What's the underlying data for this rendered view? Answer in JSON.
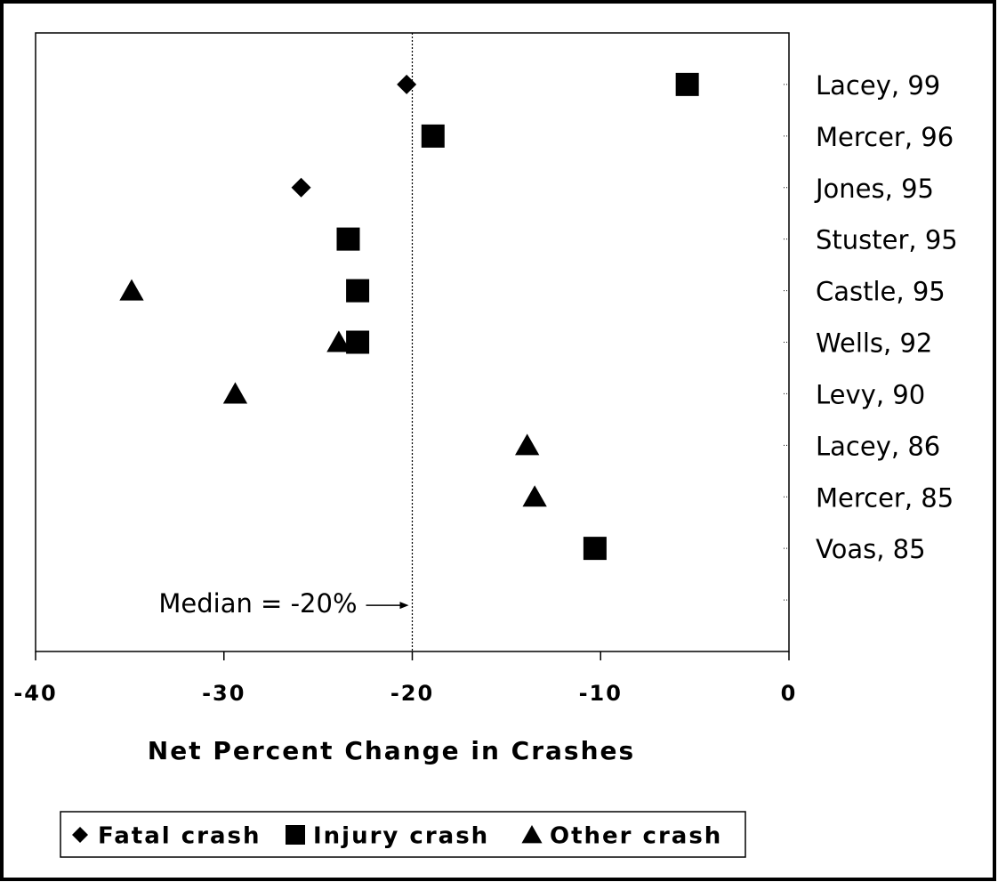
{
  "chart_data": {
    "type": "dot",
    "xlabel": "Net Percent Change in Crashes",
    "xlim": [
      -40,
      0
    ],
    "xticks": [
      -40,
      -30,
      -20,
      -10,
      0
    ],
    "categories": [
      "Lacey, 99",
      "Mercer, 96",
      "Jones, 95",
      "Stuster, 95",
      "Castle, 95",
      "Wells, 92",
      "Levy, 90",
      "Lacey, 86",
      "Mercer, 85",
      "Voas, 85",
      null
    ],
    "series": [
      {
        "name": "Fatal crash",
        "color": "#000000",
        "marker": "diamond",
        "values": [
          -20.3,
          null,
          -25.9,
          null,
          null,
          null,
          null,
          null,
          null,
          null,
          null
        ]
      },
      {
        "name": "Injury crash",
        "color": "#000000",
        "marker": "square",
        "values": [
          -5.4,
          -18.9,
          null,
          -23.4,
          -22.9,
          -22.9,
          null,
          null,
          null,
          -10.3,
          null
        ]
      },
      {
        "name": "Other crash",
        "color": "#000000",
        "marker": "triangle",
        "values": [
          null,
          null,
          null,
          null,
          -34.9,
          -23.9,
          -29.4,
          -13.9,
          -13.5,
          null,
          null
        ]
      }
    ],
    "reference_line": -20,
    "annotation": "Median = -20%"
  }
}
